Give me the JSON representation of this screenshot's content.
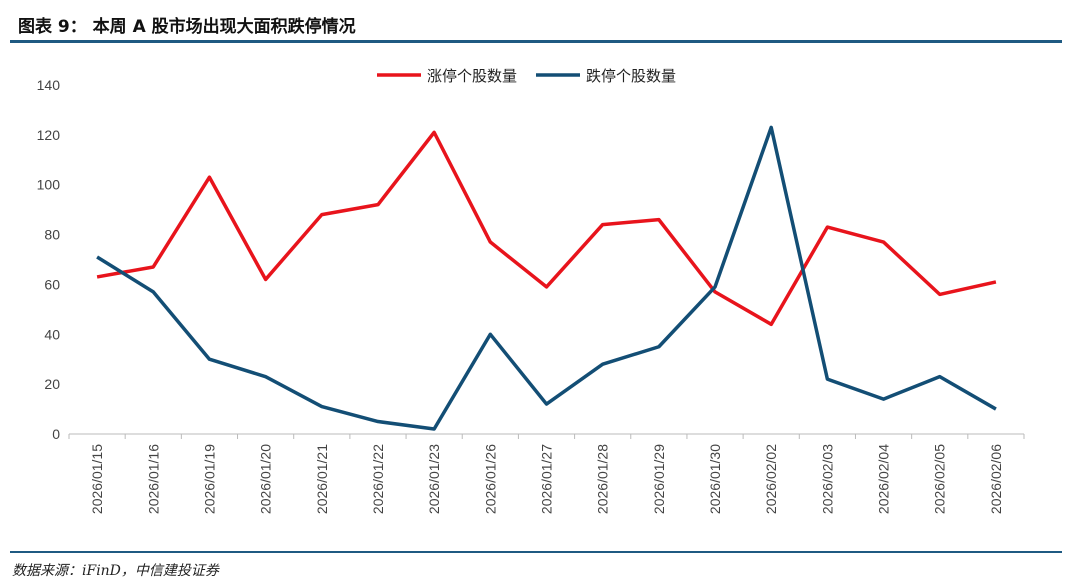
{
  "title": "图表 9：  本周 A 股市场出现大面积跌停情况",
  "source": "数据来源：iFinD，中信建投证券",
  "chart_data": {
    "type": "line",
    "title": "",
    "xlabel": "",
    "ylabel": "",
    "ylim": [
      0,
      140
    ],
    "yticks": [
      0,
      20,
      40,
      60,
      80,
      100,
      120,
      140
    ],
    "grid": false,
    "legend": "top-center",
    "categories": [
      "2026/01/15",
      "2026/01/16",
      "2026/01/19",
      "2026/01/20",
      "2026/01/21",
      "2026/01/22",
      "2026/01/23",
      "2026/01/26",
      "2026/01/27",
      "2026/01/28",
      "2026/01/29",
      "2026/01/30",
      "2026/02/02",
      "2026/02/03",
      "2026/02/04",
      "2026/02/05",
      "2026/02/06"
    ],
    "series": [
      {
        "name": "涨停个股数量",
        "color": "#e8141c",
        "values": [
          63,
          67,
          103,
          62,
          88,
          92,
          121,
          77,
          59,
          84,
          86,
          57,
          44,
          83,
          77,
          56,
          61
        ]
      },
      {
        "name": "跌停个股数量",
        "color": "#134e75",
        "values": [
          71,
          57,
          30,
          23,
          11,
          5,
          2,
          40,
          12,
          28,
          35,
          59,
          123,
          22,
          14,
          23,
          10
        ]
      }
    ]
  }
}
